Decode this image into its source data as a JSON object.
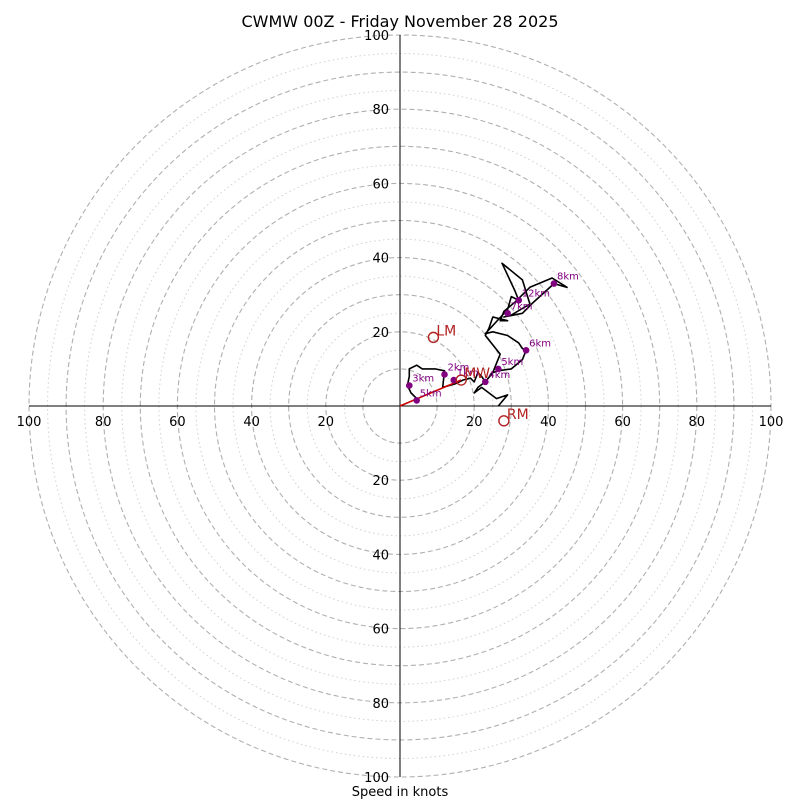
{
  "chart_data": {
    "type": "hodograph",
    "title": "CWMW 00Z - Friday November 28 2025",
    "xlabel": "Speed in knots",
    "units": "knots",
    "axis_range": [
      -100,
      100
    ],
    "x_tick_labels": [
      "100",
      "80",
      "60",
      "40",
      "20",
      "20",
      "40",
      "60",
      "80",
      "100"
    ],
    "x_tick_values": [
      -100,
      -80,
      -60,
      -40,
      -20,
      20,
      40,
      60,
      80,
      100
    ],
    "y_tick_labels": [
      "100",
      "80",
      "60",
      "40",
      "20",
      "20",
      "40",
      "60",
      "80",
      "100"
    ],
    "y_tick_values": [
      100,
      80,
      60,
      40,
      20,
      -20,
      -40,
      -60,
      -80,
      -100
    ],
    "ring_speeds_dashed": [
      10,
      20,
      30,
      40,
      50,
      60,
      70,
      80,
      90,
      100
    ],
    "ring_speeds_dotted": [
      15,
      25,
      35,
      45,
      55,
      65,
      75,
      85,
      95
    ],
    "wind_trace_uv": [
      [
        5,
        1.5
      ],
      [
        3,
        3.5
      ],
      [
        2,
        5.5
      ],
      [
        2.5,
        8
      ],
      [
        2.5,
        10
      ],
      [
        4.5,
        11
      ],
      [
        6,
        10
      ],
      [
        9.5,
        10
      ],
      [
        12,
        9.5
      ],
      [
        11.5,
        5
      ],
      [
        15,
        6
      ],
      [
        17,
        7
      ],
      [
        19,
        7.5
      ],
      [
        20,
        6.5
      ],
      [
        21,
        9
      ],
      [
        22,
        8
      ],
      [
        23,
        6.5
      ],
      [
        25,
        9
      ],
      [
        26.5,
        9.5
      ],
      [
        30,
        10
      ],
      [
        33,
        12.5
      ],
      [
        34,
        15
      ],
      [
        33,
        15.5
      ],
      [
        32,
        17
      ],
      [
        29,
        19
      ],
      [
        25,
        20
      ],
      [
        23,
        19.5
      ],
      [
        29,
        26
      ],
      [
        30,
        29.5
      ],
      [
        32,
        28.5
      ],
      [
        31,
        31
      ],
      [
        27.5,
        38.5
      ],
      [
        33,
        34
      ],
      [
        35,
        27.5
      ],
      [
        30,
        24.5
      ],
      [
        28,
        24
      ],
      [
        33,
        25
      ],
      [
        36,
        28
      ],
      [
        41.5,
        33
      ],
      [
        45,
        32
      ],
      [
        41,
        34.5
      ],
      [
        35,
        32
      ],
      [
        31,
        28
      ],
      [
        28,
        25.5
      ],
      [
        27,
        23
      ],
      [
        29,
        23
      ],
      [
        25,
        24
      ],
      [
        24,
        21
      ],
      [
        23,
        19
      ],
      [
        27,
        14
      ],
      [
        25,
        9
      ],
      [
        23,
        6.5
      ],
      [
        21,
        5
      ],
      [
        20,
        3.5
      ],
      [
        22,
        5
      ],
      [
        26,
        2
      ],
      [
        29,
        3
      ],
      [
        26.5,
        0
      ]
    ],
    "height_markers": [
      {
        "label": "5km",
        "u": 4.5,
        "v": 1.5
      },
      {
        "label": "3km",
        "u": 2.5,
        "v": 5.5
      },
      {
        "label": "2km",
        "u": 12,
        "v": 8.5
      },
      {
        "label": "1km",
        "u": 14.5,
        "v": 7
      },
      {
        "label": "4km",
        "u": 23,
        "v": 6.5
      },
      {
        "label": "5km",
        "u": 26.5,
        "v": 10
      },
      {
        "label": "6km",
        "u": 34,
        "v": 15
      },
      {
        "label": "7km",
        "u": 29,
        "v": 25
      },
      {
        "label": "12km",
        "u": 32,
        "v": 28.5
      },
      {
        "label": "8km",
        "u": 41.5,
        "v": 33
      }
    ],
    "storm_motion_markers": [
      {
        "label": "LM",
        "u": 9,
        "v": 18.5
      },
      {
        "label": "MW",
        "u": 16.5,
        "v": 7
      },
      {
        "label": "RM",
        "u": 28,
        "v": -4
      }
    ],
    "bunkers_vector": {
      "from": [
        0,
        0
      ],
      "to": [
        16.5,
        7
      ]
    },
    "colors": {
      "trace": "#000000",
      "height_marker": "#800080",
      "storm_motion": "#b22222",
      "ring": "#b0b0b0",
      "axis": "#000000",
      "vector": "#cc0000"
    }
  }
}
